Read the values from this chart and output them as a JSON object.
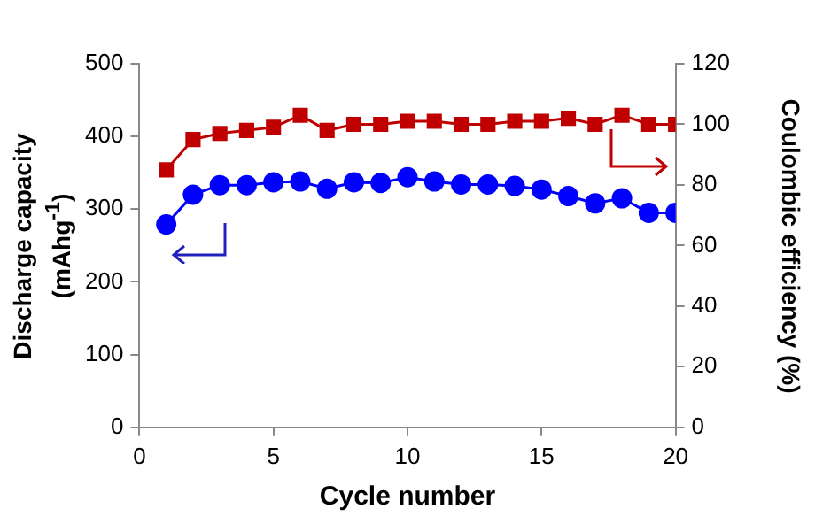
{
  "chart_data": {
    "type": "line",
    "xlabel": "Cycle number",
    "ylabel": "Discharge capacity (mAhg$^{-1}$)",
    "y2label": "Coulombic efficiency (%)",
    "x": [
      1,
      2,
      3,
      4,
      5,
      6,
      7,
      8,
      9,
      10,
      11,
      12,
      13,
      14,
      15,
      16,
      17,
      18,
      19,
      20
    ],
    "series": [
      {
        "color": "#c00000",
        "marker": "square",
        "axis": "y2",
        "values": [
          85,
          95,
          97,
          98,
          99,
          103,
          98,
          100,
          100,
          101,
          101,
          100,
          100,
          101,
          101,
          102,
          100,
          103,
          100,
          100
        ]
      },
      {
        "color": "#0000ff",
        "marker": "circle",
        "values": [
          279,
          320,
          333,
          333,
          337,
          338,
          328,
          337,
          336,
          344,
          338,
          334,
          334,
          332,
          327,
          318,
          308,
          315,
          295,
          295
        ]
      }
    ],
    "xlim": [
      0,
      20
    ],
    "xticks": [
      0,
      5,
      10,
      15,
      20
    ],
    "ylim": [
      0,
      500
    ],
    "yticks": [
      0,
      100,
      200,
      300,
      400,
      500
    ],
    "y2lim": [
      0,
      120
    ],
    "y2ticks": [
      0,
      20,
      40,
      60,
      80,
      100,
      120
    ],
    "grid": false,
    "legend": false
  }
}
